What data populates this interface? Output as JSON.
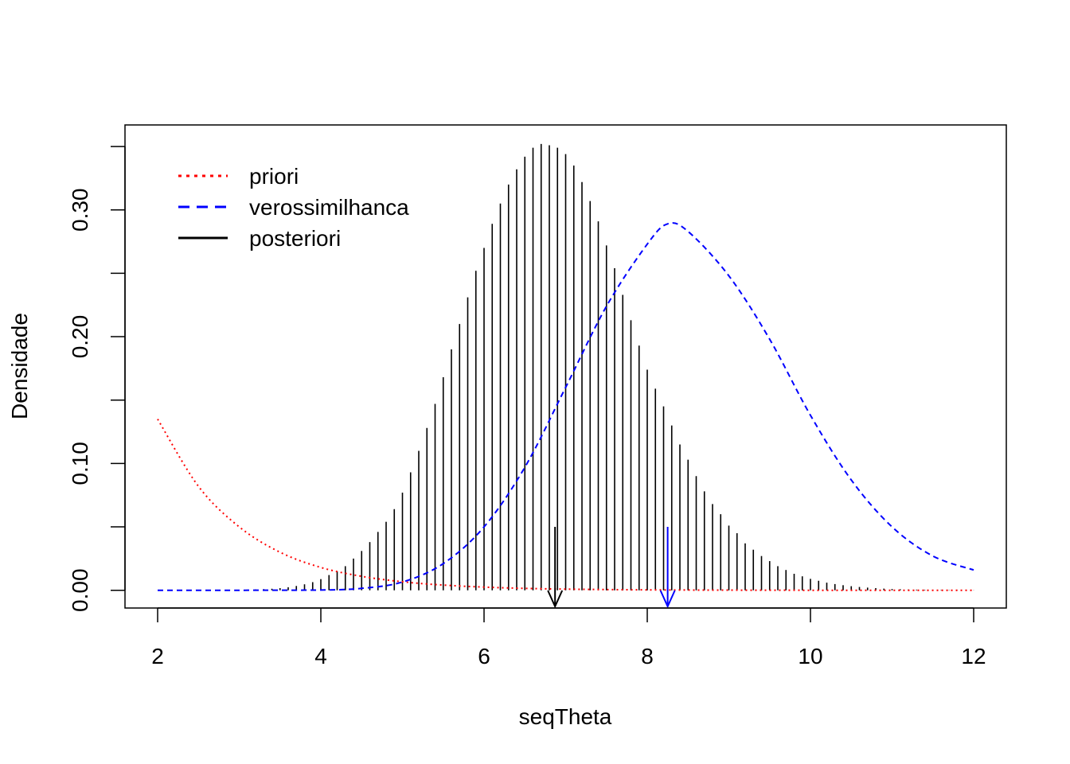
{
  "chart_data": {
    "type": "line",
    "title": "",
    "xlabel": "seqTheta",
    "ylabel": "Densidade",
    "xlim": [
      1.6,
      12.4
    ],
    "ylim": [
      -0.014,
      0.367
    ],
    "x_ticks": [
      2,
      4,
      6,
      8,
      10,
      12
    ],
    "x_tick_labels": [
      "2",
      "4",
      "6",
      "8",
      "10",
      "12"
    ],
    "y_ticks": [
      0.0,
      0.05,
      0.1,
      0.15,
      0.2,
      0.25,
      0.3,
      0.35
    ],
    "y_tick_labels": [
      "0.00",
      "",
      "0.10",
      "",
      "0.20",
      "",
      "0.30",
      ""
    ],
    "grid": false,
    "legend_position": "top-left",
    "series": [
      {
        "name": "priori",
        "style": "dotted",
        "color": "#ff0000",
        "x": [
          2.0,
          2.5,
          3.0,
          3.5,
          4.0,
          4.5,
          5.0,
          5.5,
          6.0,
          6.5,
          7.0,
          8.0,
          9.0,
          10.0,
          11.0,
          12.0
        ],
        "values": [
          0.135,
          0.082,
          0.05,
          0.03,
          0.018,
          0.011,
          0.0067,
          0.0041,
          0.0025,
          0.0015,
          0.0009,
          0.0003,
          0.0001,
          0.0,
          0.0,
          0.0
        ]
      },
      {
        "name": "verossimilhanca",
        "style": "dashed",
        "color": "#0000ff",
        "x": [
          2.0,
          3.0,
          4.0,
          4.5,
          5.0,
          5.5,
          6.0,
          6.5,
          7.0,
          7.5,
          8.0,
          8.25,
          8.5,
          9.0,
          9.5,
          10.0,
          10.5,
          11.0,
          11.5,
          12.0
        ],
        "values": [
          0.0,
          0.0,
          0.0002,
          0.0015,
          0.0065,
          0.021,
          0.05,
          0.097,
          0.16,
          0.224,
          0.273,
          0.289,
          0.283,
          0.248,
          0.198,
          0.138,
          0.087,
          0.05,
          0.027,
          0.016
        ]
      },
      {
        "name": "posteriori",
        "style": "histogram",
        "color": "#000000",
        "x": [
          3.1,
          3.2,
          3.3,
          3.4,
          3.5,
          3.6,
          3.7,
          3.8,
          3.9,
          4.0,
          4.1,
          4.2,
          4.3,
          4.4,
          4.5,
          4.6,
          4.7,
          4.8,
          4.9,
          5.0,
          5.1,
          5.2,
          5.3,
          5.4,
          5.5,
          5.6,
          5.7,
          5.8,
          5.9,
          6.0,
          6.1,
          6.2,
          6.3,
          6.4,
          6.5,
          6.6,
          6.7,
          6.8,
          6.9,
          7.0,
          7.1,
          7.2,
          7.3,
          7.4,
          7.5,
          7.6,
          7.7,
          7.8,
          7.9,
          8.0,
          8.1,
          8.2,
          8.3,
          8.4,
          8.5,
          8.6,
          8.7,
          8.8,
          8.9,
          9.0,
          9.1,
          9.2,
          9.3,
          9.4,
          9.5,
          9.6,
          9.7,
          9.8,
          9.9,
          10.0,
          10.1,
          10.2,
          10.3,
          10.4,
          10.5,
          10.6,
          10.7,
          10.8,
          10.9,
          11.0,
          11.1,
          11.2,
          11.3,
          11.4,
          11.5,
          11.6,
          11.7,
          11.8,
          11.9,
          12.0
        ],
        "values": [
          0.0005,
          0.0007,
          0.0009,
          0.0012,
          0.0017,
          0.0024,
          0.0034,
          0.0047,
          0.0064,
          0.0088,
          0.012,
          0.015,
          0.019,
          0.025,
          0.031,
          0.038,
          0.046,
          0.054,
          0.064,
          0.077,
          0.093,
          0.11,
          0.128,
          0.147,
          0.168,
          0.19,
          0.21,
          0.231,
          0.252,
          0.27,
          0.289,
          0.305,
          0.32,
          0.332,
          0.342,
          0.349,
          0.352,
          0.351,
          0.349,
          0.344,
          0.335,
          0.322,
          0.307,
          0.291,
          0.272,
          0.254,
          0.233,
          0.213,
          0.193,
          0.174,
          0.159,
          0.145,
          0.13,
          0.115,
          0.103,
          0.09,
          0.078,
          0.068,
          0.06,
          0.051,
          0.045,
          0.037,
          0.032,
          0.027,
          0.023,
          0.019,
          0.016,
          0.013,
          0.011,
          0.009,
          0.0075,
          0.006,
          0.0049,
          0.004,
          0.0032,
          0.0026,
          0.0021,
          0.0017,
          0.0013,
          0.001,
          0.0008,
          0.0006,
          0.0005,
          0.0004,
          0.0003,
          0.00025,
          0.0002,
          0.00015,
          0.0001,
          0.0001
        ]
      }
    ],
    "annotations": [
      {
        "x": 6.87,
        "y_top": 0.05,
        "color": "#000000",
        "kind": "arrow-down"
      },
      {
        "x": 8.25,
        "y_top": 0.05,
        "color": "#0000ff",
        "kind": "arrow-down"
      }
    ]
  }
}
